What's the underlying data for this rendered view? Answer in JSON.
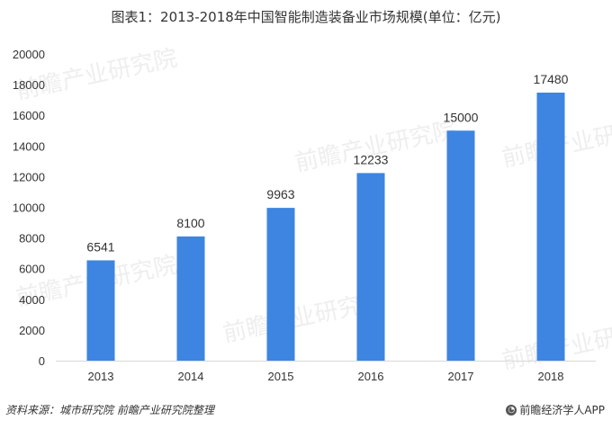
{
  "chart_data": {
    "type": "bar",
    "title": "图表1：2013-2018年中国智能制造装备业市场规模(单位：亿元)",
    "categories": [
      "2013",
      "2014",
      "2015",
      "2016",
      "2017",
      "2018"
    ],
    "values": [
      6541,
      8100,
      9963,
      12233,
      15000,
      17480
    ],
    "data_labels": [
      "6541",
      "8100",
      "9963",
      "12233",
      "15000",
      "17480"
    ],
    "xlabel": "",
    "ylabel": "",
    "ylim": [
      0,
      20000
    ],
    "yticks": [
      "0",
      "2000",
      "4000",
      "6000",
      "8000",
      "10000",
      "12000",
      "14000",
      "16000",
      "18000",
      "20000"
    ],
    "ytick_values": [
      0,
      2000,
      4000,
      6000,
      8000,
      10000,
      12000,
      14000,
      16000,
      18000,
      20000
    ],
    "grid": false,
    "bar_color": "#3d85e0"
  },
  "watermark_text": "前瞻产业研究院",
  "source": "资料来源：城市研究院 前瞻产业研究院整理",
  "brand": "前瞻经济学人APP"
}
